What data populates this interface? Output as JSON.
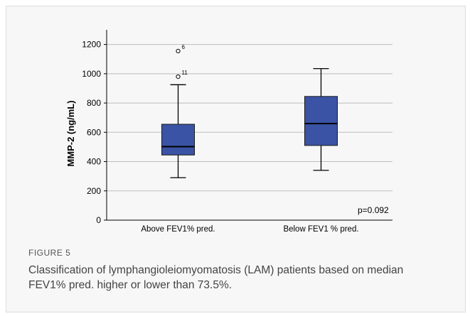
{
  "figure": {
    "label": "FIGURE 5",
    "caption": "Classification of lymphangioleiomyomatosis (LAM) patients based on median FEV1% pred. higher or lower than 73.5%."
  },
  "chart_data": {
    "type": "boxplot",
    "title": "",
    "xlabel": "",
    "ylabel": "MMP-2 (ng/mL)",
    "ylim": [
      0,
      1300
    ],
    "yticks": [
      0,
      200,
      400,
      600,
      800,
      1000,
      1200
    ],
    "grid": "horizontal",
    "annotation": "p=0.092",
    "categories": [
      "Above FEV1% pred.",
      "Below FEV1 % pred."
    ],
    "boxes": [
      {
        "category": "Above FEV1% pred.",
        "whisker_low": 290,
        "q1": 445,
        "median": 502,
        "q3": 655,
        "whisker_high": 925,
        "outliers": [
          {
            "value": 1155,
            "label": "6"
          },
          {
            "value": 980,
            "label": "11"
          }
        ]
      },
      {
        "category": "Below FEV1 % pred.",
        "whisker_low": 340,
        "q1": 510,
        "median": 660,
        "q3": 845,
        "whisker_high": 1035,
        "outliers": []
      }
    ],
    "colors": {
      "box_fill": "#3a53a4",
      "box_stroke": "#1a1a1a",
      "grid": "#bdbdbd"
    }
  }
}
